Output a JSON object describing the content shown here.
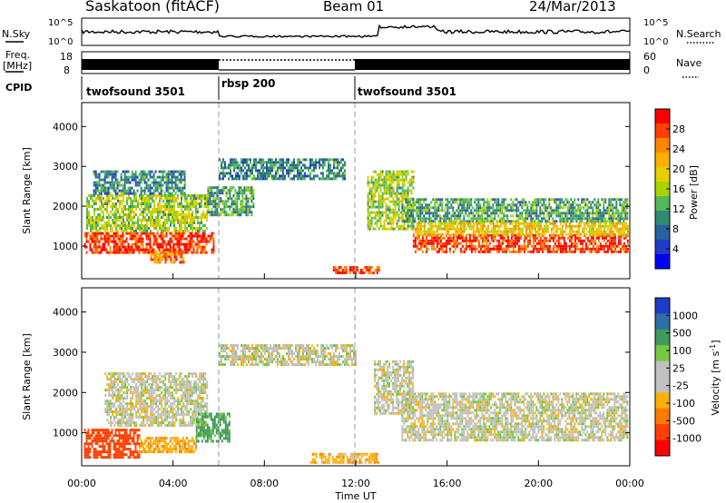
{
  "header": {
    "station": "Saskatoon (fitACF)",
    "beam": "Beam 01",
    "date": "24/Mar/2013"
  },
  "strips": {
    "nsky_label": "N.Sky",
    "nsky_ticks": [
      "10^5",
      "10^0"
    ],
    "nsearch_label": "N.Search",
    "nsearch_ticks": [
      "10^5",
      "10^0"
    ],
    "freq_label": "Freq.",
    "freq_unit": "[MHz]",
    "freq_ticks": [
      "18",
      "8"
    ],
    "nave_label": "Nave",
    "nave_ticks": [
      "60",
      "0"
    ],
    "cpid_label": "CPID",
    "cpid_segments": [
      {
        "name": "twofsound 3501",
        "start_hour": 0,
        "end_hour": 6
      },
      {
        "name": "rbsp 200",
        "start_hour": 6,
        "end_hour": 12
      },
      {
        "name": "twofsound 3501",
        "start_hour": 12,
        "end_hour": 24
      }
    ]
  },
  "chart_data": [
    {
      "type": "heatmap",
      "quantity": "power",
      "ylabel": "Slant Range [km]",
      "ylim": [
        180,
        4600
      ],
      "yticks": [
        "1000",
        "2000",
        "3000",
        "4000"
      ],
      "xlim": [
        0,
        24
      ],
      "colorbar_label": "Power [dB]",
      "colorbar_ticks": [
        "28",
        "24",
        "20",
        "16",
        "12",
        "8",
        "4"
      ],
      "colorbar_colors": [
        "#ff0000",
        "#ff4000",
        "#ff8800",
        "#ffb000",
        "#e6d000",
        "#aad400",
        "#55b85a",
        "#2e8a70",
        "#2b5fa0",
        "#1e3cc8",
        "#0000ff"
      ],
      "bands": [
        {
          "x0": 0.1,
          "x1": 5.8,
          "y0": 850,
          "y1": 1350,
          "level": 26
        },
        {
          "x0": 0.2,
          "x1": 5.5,
          "y0": 1350,
          "y1": 2300,
          "level": 14
        },
        {
          "x0": 0.5,
          "x1": 4.5,
          "y0": 2300,
          "y1": 2900,
          "level": 8
        },
        {
          "x0": 3.0,
          "x1": 4.5,
          "y0": 600,
          "y1": 900,
          "level": 22
        },
        {
          "x0": 5.5,
          "x1": 7.5,
          "y0": 1800,
          "y1": 2500,
          "level": 10
        },
        {
          "x0": 6.0,
          "x1": 11.5,
          "y0": 2700,
          "y1": 3200,
          "level": 8
        },
        {
          "x0": 11.0,
          "x1": 13.0,
          "y0": 300,
          "y1": 500,
          "level": 26
        },
        {
          "x0": 12.5,
          "x1": 14.5,
          "y0": 1400,
          "y1": 2900,
          "level": 14
        },
        {
          "x0": 14.0,
          "x1": 23.9,
          "y0": 1600,
          "y1": 2200,
          "level": 10
        },
        {
          "x0": 14.5,
          "x1": 23.9,
          "y0": 850,
          "y1": 1300,
          "level": 26
        },
        {
          "x0": 14.5,
          "x1": 23.9,
          "y0": 1300,
          "y1": 1600,
          "level": 18
        }
      ]
    },
    {
      "type": "heatmap",
      "quantity": "velocity",
      "ylabel": "Slant Range [km]",
      "ylim": [
        180,
        4600
      ],
      "yticks": [
        "1000",
        "2000",
        "3000",
        "4000"
      ],
      "xlim": [
        0,
        24
      ],
      "xticks": [
        "00:00",
        "04:00",
        "08:00",
        "12:00",
        "16:00",
        "20:00",
        "00:00"
      ],
      "xlabel": "Time UT",
      "colorbar_label": "Velocity [m s",
      "colorbar_label_sup": "-1",
      "colorbar_label_close": "]",
      "colorbar_ticks": [
        "1000",
        "500",
        "100",
        "25",
        "-25",
        "-100",
        "-500",
        "-1000"
      ],
      "colorbar_colors": [
        "#1e3cc8",
        "#2f6ea8",
        "#3f9a5c",
        "#76c840",
        "#c0c0c0",
        "#c0c0c0",
        "#ffb000",
        "#ff7a00",
        "#ff4000",
        "#ff0000"
      ],
      "bands": [
        {
          "x0": 0.1,
          "x1": 2.5,
          "y0": 400,
          "y1": 1100,
          "v": -600
        },
        {
          "x0": 1.0,
          "x1": 5.5,
          "y0": 1200,
          "y1": 2500,
          "v": 0
        },
        {
          "x0": 2.5,
          "x1": 5.0,
          "y0": 500,
          "y1": 900,
          "v": -150
        },
        {
          "x0": 5.0,
          "x1": 6.5,
          "y0": 800,
          "y1": 1500,
          "v": 300
        },
        {
          "x0": 6.0,
          "x1": 12.0,
          "y0": 2700,
          "y1": 3200,
          "v": 0
        },
        {
          "x0": 10.0,
          "x1": 13.0,
          "y0": 250,
          "y1": 500,
          "v": -120
        },
        {
          "x0": 12.8,
          "x1": 14.5,
          "y0": 1500,
          "y1": 2800,
          "v": 0
        },
        {
          "x0": 14.0,
          "x1": 23.9,
          "y0": 800,
          "y1": 2000,
          "v": 0
        }
      ]
    }
  ]
}
